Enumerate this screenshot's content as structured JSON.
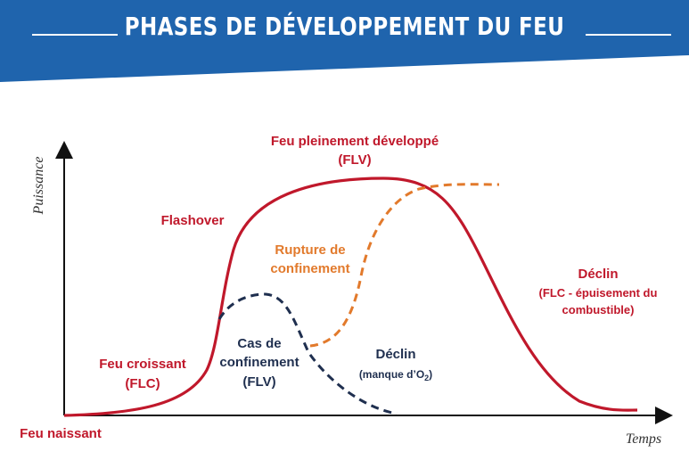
{
  "header": {
    "title": "PHASES DE DÉVELOPPEMENT DU FEU"
  },
  "axes": {
    "y_label": "Puissance",
    "x_label": "Temps"
  },
  "labels": {
    "fully_developed_line1": "Feu pleinement développé",
    "fully_developed_line2": "(FLV)",
    "flashover": "Flashover",
    "confinement_break_line1": "Rupture de",
    "confinement_break_line2": "confinement",
    "decline_fuel_line1": "Déclin",
    "decline_fuel_line2": "(FLC - épuisement du",
    "decline_fuel_line3": "combustible)",
    "confinement_line1": "Cas de",
    "confinement_line2": "confinement",
    "confinement_line3": "(FLV)",
    "decline_oxygen_line1": "Déclin",
    "decline_oxygen_prefix": "(manque d’O",
    "decline_oxygen_sub": "2",
    "decline_oxygen_suffix": ")",
    "growing_line1": "Feu croissant",
    "growing_line2": "(FLC)",
    "incipient": "Feu naissant"
  },
  "colors": {
    "banner": "#1f64ad",
    "main_curve": "#c0182b",
    "rupture_curve": "#e27a2c",
    "confinement_curve": "#1f2f4f",
    "axis": "#111111",
    "red_text": "#c0182b",
    "orange_text": "#e27a2c",
    "dark_text": "#1f2f4f"
  }
}
